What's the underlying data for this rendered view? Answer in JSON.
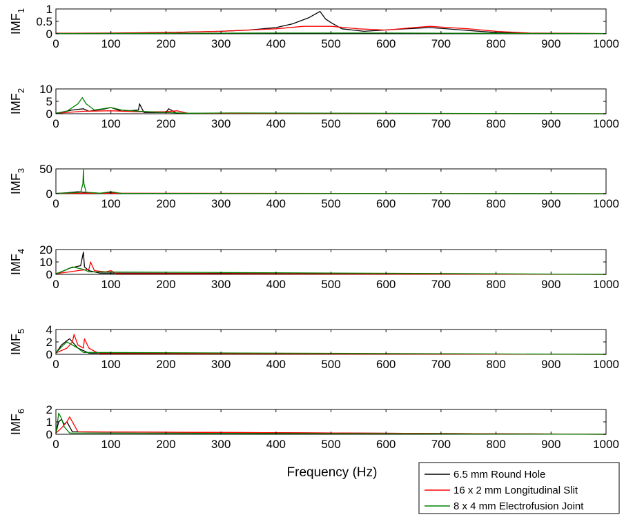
{
  "chart_data": [
    {
      "type": "line",
      "ylabel": "IMF",
      "ylabel_sub": "1",
      "xlim": [
        0,
        1000
      ],
      "ylim": [
        0,
        1
      ],
      "xticks": [
        0,
        100,
        200,
        300,
        400,
        500,
        600,
        700,
        800,
        900,
        1000
      ],
      "yticks": [
        0,
        0.5,
        1
      ],
      "ytick_labels": [
        "0",
        "0.5",
        "1"
      ],
      "series": [
        {
          "name": "6.5 mm Round Hole",
          "color": "#000000",
          "x": [
            0,
            100,
            200,
            300,
            350,
            400,
            430,
            460,
            480,
            490,
            500,
            520,
            560,
            620,
            680,
            740,
            800,
            850,
            1000
          ],
          "y": [
            0.02,
            0.02,
            0.05,
            0.1,
            0.15,
            0.25,
            0.4,
            0.65,
            0.9,
            0.6,
            0.45,
            0.2,
            0.1,
            0.18,
            0.25,
            0.15,
            0.05,
            0.02,
            0.01
          ]
        },
        {
          "name": "16 x 2 mm Longitudinal Slit",
          "color": "#ff0000",
          "x": [
            0,
            100,
            200,
            300,
            400,
            450,
            500,
            550,
            600,
            650,
            680,
            750,
            800,
            860,
            1000
          ],
          "y": [
            0.02,
            0.03,
            0.05,
            0.1,
            0.2,
            0.3,
            0.3,
            0.2,
            0.15,
            0.25,
            0.3,
            0.2,
            0.1,
            0.03,
            0.01
          ]
        },
        {
          "name": "8 x 4 mm Electrofusion Joint",
          "color": "#008000",
          "x": [
            0,
            200,
            400,
            600,
            800,
            1000
          ],
          "y": [
            0.01,
            0.02,
            0.03,
            0.03,
            0.02,
            0.01
          ]
        }
      ]
    },
    {
      "type": "line",
      "ylabel": "IMF",
      "ylabel_sub": "2",
      "xlim": [
        0,
        1000
      ],
      "ylim": [
        0,
        10
      ],
      "xticks": [
        0,
        100,
        200,
        300,
        400,
        500,
        600,
        700,
        800,
        900,
        1000
      ],
      "yticks": [
        0,
        5,
        10
      ],
      "ytick_labels": [
        "0",
        "5",
        "10"
      ],
      "series": [
        {
          "name": "6.5 mm Round Hole",
          "color": "#000000",
          "x": [
            0,
            30,
            50,
            60,
            90,
            100,
            120,
            150,
            152,
            160,
            200,
            205,
            220,
            240,
            1000
          ],
          "y": [
            0.2,
            1.5,
            2,
            1,
            2,
            2.5,
            1,
            1.5,
            4,
            0.5,
            0.5,
            2,
            0.2,
            0.1,
            0
          ]
        },
        {
          "name": "16 x 2 mm Longitudinal Slit",
          "color": "#ff0000",
          "x": [
            0,
            50,
            100,
            150,
            200,
            220,
            240,
            1000
          ],
          "y": [
            0.2,
            1,
            1.2,
            0.8,
            0.8,
            1.2,
            0.2,
            0
          ]
        },
        {
          "name": "8 x 4 mm Electrofusion Joint",
          "color": "#008000",
          "x": [
            0,
            20,
            40,
            48,
            55,
            70,
            100,
            120,
            150,
            200,
            240,
            320,
            1000
          ],
          "y": [
            0.2,
            1,
            4,
            6.5,
            4,
            1.5,
            2.5,
            1.5,
            1,
            0.5,
            0.2,
            0.3,
            0
          ]
        }
      ]
    },
    {
      "type": "line",
      "ylabel": "IMF",
      "ylabel_sub": "3",
      "xlim": [
        0,
        1000
      ],
      "ylim": [
        0,
        50
      ],
      "xticks": [
        0,
        100,
        200,
        300,
        400,
        500,
        600,
        700,
        800,
        900,
        1000
      ],
      "yticks": [
        0,
        50
      ],
      "ytick_labels": [
        "0",
        "50"
      ],
      "series": [
        {
          "name": "6.5 mm Round Hole",
          "color": "#000000",
          "x": [
            0,
            20,
            40,
            50,
            60,
            80,
            100,
            120,
            1000
          ],
          "y": [
            0.5,
            2,
            4,
            3,
            2,
            1,
            2,
            0.5,
            0
          ]
        },
        {
          "name": "16 x 2 mm Longitudinal Slit",
          "color": "#ff0000",
          "x": [
            0,
            50,
            100,
            1000
          ],
          "y": [
            0.5,
            1,
            1,
            0
          ]
        },
        {
          "name": "8 x 4 mm Electrofusion Joint",
          "color": "#008000",
          "x": [
            0,
            30,
            45,
            49,
            50,
            51,
            55,
            80,
            100,
            120,
            1000
          ],
          "y": [
            0.5,
            2,
            3,
            20,
            48,
            20,
            3,
            1,
            4,
            0.5,
            0
          ]
        }
      ]
    },
    {
      "type": "line",
      "ylabel": "IMF",
      "ylabel_sub": "4",
      "xlim": [
        0,
        1000
      ],
      "ylim": [
        0,
        20
      ],
      "xticks": [
        0,
        100,
        200,
        300,
        400,
        500,
        600,
        700,
        800,
        900,
        1000
      ],
      "yticks": [
        0,
        10,
        20
      ],
      "ytick_labels": [
        "0",
        "10",
        "20"
      ],
      "series": [
        {
          "name": "6.5 mm Round Hole",
          "color": "#000000",
          "x": [
            0,
            10,
            25,
            35,
            45,
            50,
            52,
            60,
            80,
            1000
          ],
          "y": [
            0.5,
            2,
            5,
            6,
            7,
            18,
            6,
            3,
            1,
            0
          ]
        },
        {
          "name": "16 x 2 mm Longitudinal Slit",
          "color": "#ff0000",
          "x": [
            0,
            40,
            60,
            63,
            70,
            90,
            100,
            110,
            1000
          ],
          "y": [
            0.5,
            3,
            4,
            10,
            3,
            2,
            3,
            0.5,
            0
          ]
        },
        {
          "name": "8 x 4 mm Electrofusion Joint",
          "color": "#008000",
          "x": [
            0,
            15,
            30,
            40,
            50,
            60,
            1000
          ],
          "y": [
            0.5,
            3,
            6,
            5,
            4,
            2,
            0
          ]
        }
      ]
    },
    {
      "type": "line",
      "ylabel": "IMF",
      "ylabel_sub": "5",
      "xlim": [
        0,
        1000
      ],
      "ylim": [
        0,
        4
      ],
      "xticks": [
        0,
        100,
        200,
        300,
        400,
        500,
        600,
        700,
        800,
        900,
        1000
      ],
      "yticks": [
        0,
        2,
        4
      ],
      "ytick_labels": [
        "0",
        "2",
        "4"
      ],
      "series": [
        {
          "name": "6.5 mm Round Hole",
          "color": "#000000",
          "x": [
            0,
            10,
            20,
            25,
            30,
            40,
            60,
            1000
          ],
          "y": [
            0.2,
            1.5,
            2.2,
            2.5,
            2,
            1,
            0.2,
            0
          ]
        },
        {
          "name": "16 x 2 mm Longitudinal Slit",
          "color": "#ff0000",
          "x": [
            0,
            20,
            30,
            33,
            40,
            50,
            52,
            60,
            70,
            80,
            1000
          ],
          "y": [
            0.2,
            1,
            2,
            3.2,
            1.5,
            1,
            2.5,
            1,
            0.5,
            0.1,
            0
          ]
        },
        {
          "name": "8 x 4 mm Electrofusion Joint",
          "color": "#008000",
          "x": [
            0,
            10,
            20,
            30,
            40,
            50,
            1000
          ],
          "y": [
            0.2,
            1.2,
            2,
            1.5,
            1,
            0.3,
            0
          ]
        }
      ]
    },
    {
      "type": "line",
      "ylabel": "IMF",
      "ylabel_sub": "6",
      "xlim": [
        0,
        1000
      ],
      "ylim": [
        0,
        2
      ],
      "xticks": [
        0,
        100,
        200,
        300,
        400,
        500,
        600,
        700,
        800,
        900,
        1000
      ],
      "yticks": [
        0,
        1,
        2
      ],
      "ytick_labels": [
        "0",
        "1",
        "2"
      ],
      "series": [
        {
          "name": "6.5 mm Round Hole",
          "color": "#000000",
          "x": [
            0,
            5,
            10,
            15,
            20,
            30,
            1000
          ],
          "y": [
            0.1,
            1,
            1.2,
            0.8,
            1,
            0.2,
            0
          ]
        },
        {
          "name": "16 x 2 mm Longitudinal Slit",
          "color": "#ff0000",
          "x": [
            0,
            10,
            20,
            25,
            30,
            40,
            1000
          ],
          "y": [
            0.1,
            0.5,
            1,
            1.4,
            1,
            0.2,
            0
          ]
        },
        {
          "name": "8 x 4 mm Electrofusion Joint",
          "color": "#008000",
          "x": [
            0,
            3,
            5,
            10,
            15,
            25,
            1000
          ],
          "y": [
            0.1,
            1,
            1.7,
            1.3,
            0.6,
            0.1,
            0
          ]
        }
      ]
    }
  ],
  "xlabel": "Frequency (Hz)",
  "legend": {
    "placement": "bottom-right",
    "entries": [
      {
        "label": "6.5 mm Round Hole",
        "color": "#000000"
      },
      {
        "label": "16 x 2 mm Longitudinal Slit",
        "color": "#ff0000"
      },
      {
        "label": "8 x 4 mm Electrofusion Joint",
        "color": "#008000"
      }
    ]
  }
}
